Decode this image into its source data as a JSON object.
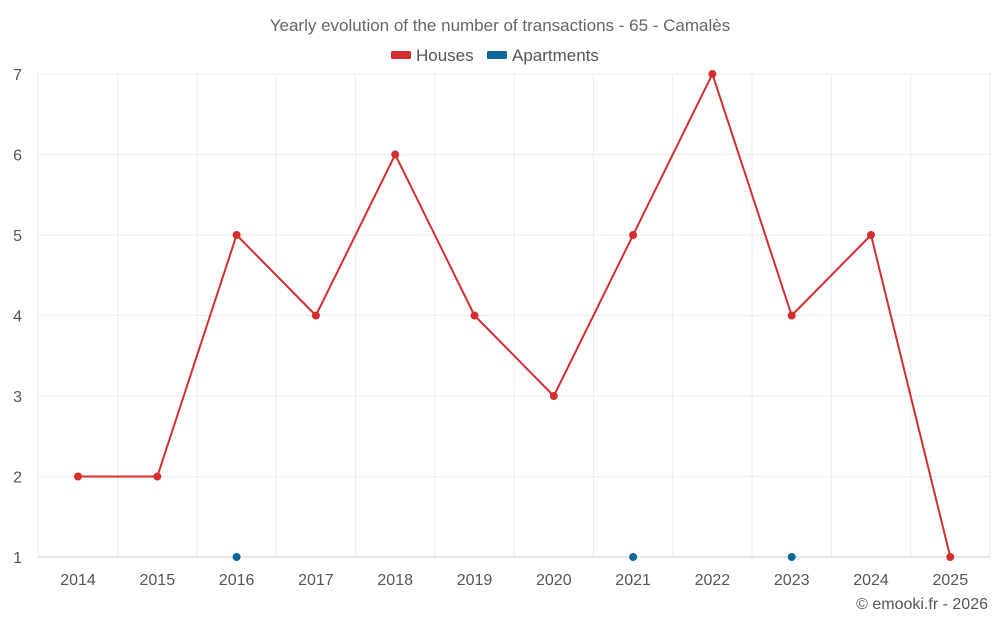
{
  "chart_data": {
    "type": "line",
    "title": "Yearly evolution of the number of transactions - 65 - Camalès",
    "categories": [
      "2014",
      "2015",
      "2016",
      "2017",
      "2018",
      "2019",
      "2020",
      "2021",
      "2022",
      "2023",
      "2024",
      "2025"
    ],
    "series": [
      {
        "name": "Houses",
        "color": "#d32f2f",
        "values": [
          2,
          2,
          5,
          4,
          6,
          4,
          3,
          5,
          7,
          4,
          5,
          1
        ]
      },
      {
        "name": "Apartments",
        "color": "#0f6699",
        "values": [
          null,
          null,
          1,
          null,
          null,
          null,
          null,
          1,
          null,
          1,
          null,
          null
        ]
      }
    ],
    "ylim": [
      1,
      7
    ],
    "yticks": [
      1,
      2,
      3,
      4,
      5,
      6,
      7
    ],
    "xlabel": "",
    "ylabel": "",
    "grid": true,
    "legend_position": "top-center"
  },
  "credit": "© emooki.fr - 2026"
}
